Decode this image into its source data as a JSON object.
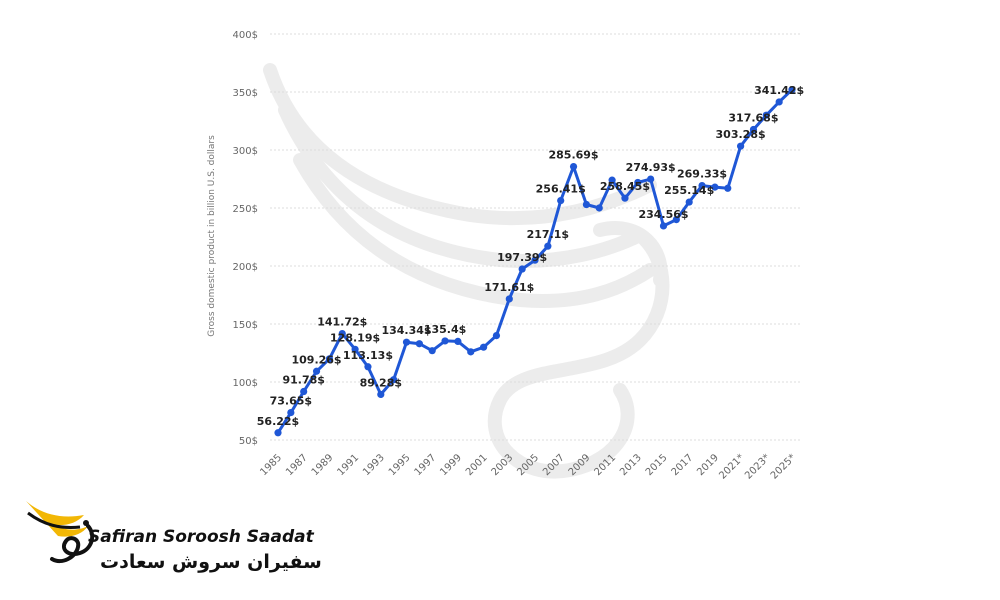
{
  "chart_data": {
    "type": "line",
    "ylabel": "Gross domestic product in billion U.S. dollars",
    "y_ticks": [
      "50$",
      "100$",
      "150$",
      "200$",
      "250$",
      "300$",
      "350$",
      "400$"
    ],
    "ylim": [
      50,
      400
    ],
    "grid": true,
    "x_tick_labels": [
      "1985",
      "1987",
      "1989",
      "1991",
      "1993",
      "1995",
      "1997",
      "1999",
      "2001",
      "2003",
      "2005",
      "2007",
      "2009",
      "2011",
      "2013",
      "2015",
      "2017",
      "2019",
      "2021*",
      "2023*",
      "2025*"
    ],
    "series_color": "#1f57d6",
    "series": [
      {
        "x": [
          1985,
          1986,
          1987,
          1988,
          1989,
          1990,
          1991,
          1992,
          1993,
          1994,
          1995,
          1996,
          1997,
          1998,
          1999,
          2000,
          2001,
          2002,
          2003,
          2004,
          2005,
          2006,
          2007,
          2008,
          2009,
          2010,
          2011,
          2012,
          2013,
          2014,
          2015,
          2016,
          2017,
          2018,
          2019,
          2020,
          2021,
          2022,
          2023,
          2024,
          2025
        ],
        "values": [
          56.22,
          73.65,
          91.78,
          109.26,
          120.0,
          141.72,
          128.19,
          113.13,
          89.28,
          102.0,
          134.34,
          133.0,
          127.0,
          135.4,
          135.0,
          126.0,
          130.0,
          140.0,
          171.61,
          197.39,
          205.0,
          217.1,
          256.41,
          285.69,
          253.0,
          250.0,
          274.0,
          258.45,
          272.0,
          274.93,
          234.56,
          240.0,
          255.14,
          269.33,
          268.0,
          267.0,
          303.28,
          317.68,
          330.0,
          341.42,
          352.0
        ]
      }
    ],
    "data_labels": [
      {
        "x": 1985,
        "text": "56.22$"
      },
      {
        "x": 1986,
        "text": "73.65$"
      },
      {
        "x": 1987,
        "text": "91.78$"
      },
      {
        "x": 1988,
        "text": "109.26$"
      },
      {
        "x": 1990,
        "text": "141.72$"
      },
      {
        "x": 1991,
        "text": "128.19$"
      },
      {
        "x": 1992,
        "text": "113.13$"
      },
      {
        "x": 1993,
        "text": "89.28$"
      },
      {
        "x": 1995,
        "text": "134.34$"
      },
      {
        "x": 1998,
        "text": "135.4$"
      },
      {
        "x": 2003,
        "text": "171.61$"
      },
      {
        "x": 2004,
        "text": "197.39$"
      },
      {
        "x": 2006,
        "text": "217.1$"
      },
      {
        "x": 2007,
        "text": "256.41$"
      },
      {
        "x": 2008,
        "text": "285.69$"
      },
      {
        "x": 2012,
        "text": "258.45$"
      },
      {
        "x": 2014,
        "text": "274.93$"
      },
      {
        "x": 2015,
        "text": "234.56$"
      },
      {
        "x": 2017,
        "text": "255.14$"
      },
      {
        "x": 2018,
        "text": "269.33$"
      },
      {
        "x": 2021,
        "text": "303.28$"
      },
      {
        "x": 2022,
        "text": "317.68$"
      },
      {
        "x": 2024,
        "text": "341.42$"
      }
    ]
  },
  "watermark": {
    "icon": "phoenix-wing-icon",
    "color": "#eeeeee"
  },
  "logo": {
    "icon": "phoenix-logo-icon",
    "name_en": "Safiran Soroosh Saadat",
    "name_fa": "سفیران سروش سعادت",
    "accent_color": "#f2b705"
  }
}
